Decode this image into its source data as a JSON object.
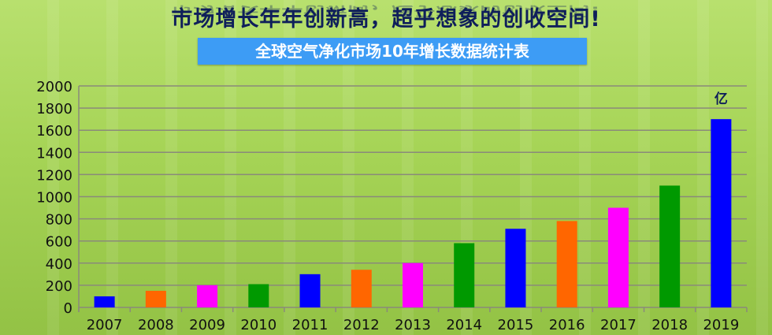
{
  "header": {
    "headline": "市场增长年年创新高，超乎想象的创收空间!",
    "subtitle": "全球空气净化市场10年增长数据统计表"
  },
  "chart_data": {
    "type": "bar",
    "title": "全球空气净化市场10年增长数据统计表",
    "unit_label": "亿",
    "categories": [
      "2007",
      "2008",
      "2009",
      "2010",
      "2011",
      "2012",
      "2013",
      "2014",
      "2015",
      "2016",
      "2017",
      "2018",
      "2019"
    ],
    "values": [
      100,
      150,
      200,
      210,
      300,
      340,
      400,
      580,
      710,
      780,
      900,
      1100,
      1700
    ],
    "colors": [
      "#0000ff",
      "#ff6600",
      "#ff00ff",
      "#009900",
      "#0000ff",
      "#ff6600",
      "#ff00ff",
      "#009900",
      "#0000ff",
      "#ff6600",
      "#ff00ff",
      "#009900",
      "#0000ff"
    ],
    "ylim": [
      0,
      2000
    ],
    "yticks": [
      0,
      200,
      400,
      600,
      800,
      1000,
      1200,
      1400,
      1600,
      1800,
      2000
    ],
    "grid": true,
    "xlabel": "",
    "ylabel": ""
  }
}
